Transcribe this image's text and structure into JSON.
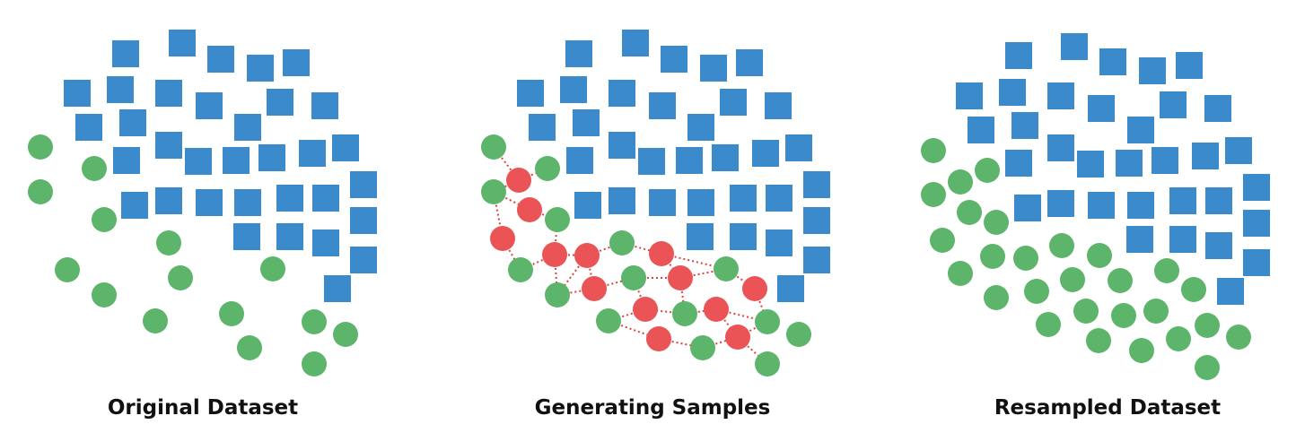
{
  "colors": {
    "majority_square": "#3b8bcc",
    "minority_circle": "#5cb56a",
    "synthetic_circle": "#ea5456",
    "link_line": "#e0413f",
    "caption_text": "#111111"
  },
  "panels": [
    {
      "id": "original",
      "caption": "Original Dataset",
      "squares": [
        [
          140,
          60
        ],
        [
          203,
          48
        ],
        [
          246,
          66
        ],
        [
          290,
          76
        ],
        [
          330,
          70
        ],
        [
          86,
          104
        ],
        [
          134,
          100
        ],
        [
          188,
          104
        ],
        [
          233,
          118
        ],
        [
          312,
          114
        ],
        [
          362,
          118
        ],
        [
          99,
          142
        ],
        [
          148,
          137
        ],
        [
          276,
          142
        ],
        [
          141,
          179
        ],
        [
          188,
          162
        ],
        [
          221,
          180
        ],
        [
          263,
          179
        ],
        [
          303,
          176
        ],
        [
          348,
          171
        ],
        [
          385,
          165
        ],
        [
          405,
          206
        ],
        [
          150,
          229
        ],
        [
          188,
          224
        ],
        [
          233,
          226
        ],
        [
          276,
          226
        ],
        [
          323,
          221
        ],
        [
          363,
          221
        ],
        [
          405,
          246
        ],
        [
          275,
          264
        ],
        [
          323,
          264
        ],
        [
          363,
          271
        ],
        [
          405,
          290
        ],
        [
          376,
          322
        ]
      ],
      "circles": [
        [
          45,
          164
        ],
        [
          105,
          188
        ],
        [
          45,
          214
        ],
        [
          116,
          245
        ],
        [
          188,
          271
        ],
        [
          75,
          301
        ],
        [
          201,
          310
        ],
        [
          304,
          300
        ],
        [
          116,
          329
        ],
        [
          173,
          358
        ],
        [
          258,
          350
        ],
        [
          350,
          359
        ],
        [
          385,
          373
        ],
        [
          278,
          388
        ],
        [
          350,
          406
        ]
      ],
      "synthetic": [],
      "links": []
    },
    {
      "id": "generating",
      "caption": "Generating Samples",
      "squares": [
        [
          645,
          60
        ],
        [
          708,
          48
        ],
        [
          751,
          66
        ],
        [
          795,
          76
        ],
        [
          835,
          70
        ],
        [
          591,
          104
        ],
        [
          639,
          100
        ],
        [
          693,
          104
        ],
        [
          738,
          118
        ],
        [
          817,
          114
        ],
        [
          867,
          118
        ],
        [
          604,
          142
        ],
        [
          653,
          137
        ],
        [
          781,
          142
        ],
        [
          646,
          179
        ],
        [
          693,
          162
        ],
        [
          726,
          180
        ],
        [
          768,
          179
        ],
        [
          808,
          176
        ],
        [
          853,
          171
        ],
        [
          890,
          165
        ],
        [
          910,
          206
        ],
        [
          655,
          229
        ],
        [
          693,
          224
        ],
        [
          738,
          226
        ],
        [
          781,
          226
        ],
        [
          828,
          221
        ],
        [
          868,
          221
        ],
        [
          910,
          246
        ],
        [
          780,
          264
        ],
        [
          828,
          264
        ],
        [
          868,
          271
        ],
        [
          910,
          290
        ],
        [
          881,
          322
        ]
      ],
      "circles": [
        [
          550,
          164
        ],
        [
          610,
          188
        ],
        [
          550,
          214
        ],
        [
          621,
          245
        ],
        [
          693,
          271
        ],
        [
          580,
          301
        ],
        [
          706,
          310
        ],
        [
          809,
          300
        ],
        [
          621,
          329
        ],
        [
          678,
          358
        ],
        [
          763,
          350
        ],
        [
          855,
          359
        ],
        [
          890,
          373
        ],
        [
          783,
          388
        ],
        [
          855,
          406
        ]
      ],
      "synthetic": [
        [
          578,
          201
        ],
        [
          590,
          234
        ],
        [
          560,
          266
        ],
        [
          618,
          284
        ],
        [
          654,
          285
        ],
        [
          737,
          283
        ],
        [
          758,
          310
        ],
        [
          662,
          322
        ],
        [
          841,
          322
        ],
        [
          719,
          345
        ],
        [
          798,
          345
        ],
        [
          734,
          378
        ],
        [
          822,
          376
        ]
      ],
      "links": [
        [
          [
            550,
            164
          ],
          [
            578,
            201
          ]
        ],
        [
          [
            578,
            201
          ],
          [
            610,
            188
          ]
        ],
        [
          [
            578,
            201
          ],
          [
            550,
            214
          ]
        ],
        [
          [
            550,
            214
          ],
          [
            590,
            234
          ]
        ],
        [
          [
            590,
            234
          ],
          [
            621,
            245
          ]
        ],
        [
          [
            550,
            214
          ],
          [
            560,
            266
          ]
        ],
        [
          [
            560,
            266
          ],
          [
            580,
            301
          ]
        ],
        [
          [
            580,
            301
          ],
          [
            618,
            284
          ]
        ],
        [
          [
            618,
            284
          ],
          [
            621,
            245
          ]
        ],
        [
          [
            618,
            284
          ],
          [
            654,
            285
          ]
        ],
        [
          [
            654,
            285
          ],
          [
            693,
            271
          ]
        ],
        [
          [
            618,
            284
          ],
          [
            621,
            329
          ]
        ],
        [
          [
            654,
            285
          ],
          [
            621,
            329
          ]
        ],
        [
          [
            654,
            285
          ],
          [
            662,
            322
          ]
        ],
        [
          [
            662,
            322
          ],
          [
            621,
            329
          ]
        ],
        [
          [
            662,
            322
          ],
          [
            706,
            310
          ]
        ],
        [
          [
            693,
            271
          ],
          [
            737,
            283
          ]
        ],
        [
          [
            737,
            283
          ],
          [
            809,
            300
          ]
        ],
        [
          [
            737,
            283
          ],
          [
            758,
            310
          ]
        ],
        [
          [
            706,
            310
          ],
          [
            758,
            310
          ]
        ],
        [
          [
            758,
            310
          ],
          [
            809,
            300
          ]
        ],
        [
          [
            809,
            300
          ],
          [
            841,
            322
          ]
        ],
        [
          [
            841,
            322
          ],
          [
            855,
            359
          ]
        ],
        [
          [
            758,
            310
          ],
          [
            763,
            350
          ]
        ],
        [
          [
            763,
            350
          ],
          [
            719,
            345
          ]
        ],
        [
          [
            719,
            345
          ],
          [
            678,
            358
          ]
        ],
        [
          [
            719,
            345
          ],
          [
            706,
            310
          ]
        ],
        [
          [
            763,
            350
          ],
          [
            798,
            345
          ]
        ],
        [
          [
            798,
            345
          ],
          [
            855,
            359
          ]
        ],
        [
          [
            678,
            358
          ],
          [
            734,
            378
          ]
        ],
        [
          [
            734,
            378
          ],
          [
            783,
            388
          ]
        ],
        [
          [
            783,
            388
          ],
          [
            822,
            376
          ]
        ],
        [
          [
            822,
            376
          ],
          [
            855,
            406
          ]
        ],
        [
          [
            822,
            376
          ],
          [
            855,
            359
          ]
        ],
        [
          [
            798,
            345
          ],
          [
            822,
            376
          ]
        ]
      ]
    },
    {
      "id": "resampled",
      "caption": "Resampled Dataset",
      "squares": [
        [
          1135,
          62
        ],
        [
          1197,
          52
        ],
        [
          1240,
          69
        ],
        [
          1284,
          79
        ],
        [
          1325,
          73
        ],
        [
          1080,
          107
        ],
        [
          1128,
          103
        ],
        [
          1182,
          107
        ],
        [
          1227,
          121
        ],
        [
          1307,
          117
        ],
        [
          1357,
          121
        ],
        [
          1093,
          145
        ],
        [
          1142,
          140
        ],
        [
          1271,
          145
        ],
        [
          1135,
          182
        ],
        [
          1182,
          165
        ],
        [
          1215,
          183
        ],
        [
          1258,
          182
        ],
        [
          1298,
          179
        ],
        [
          1343,
          174
        ],
        [
          1380,
          168
        ],
        [
          1400,
          209
        ],
        [
          1145,
          232
        ],
        [
          1182,
          227
        ],
        [
          1227,
          229
        ],
        [
          1271,
          229
        ],
        [
          1318,
          224
        ],
        [
          1358,
          224
        ],
        [
          1400,
          249
        ],
        [
          1270,
          267
        ],
        [
          1318,
          267
        ],
        [
          1358,
          274
        ],
        [
          1400,
          293
        ],
        [
          1371,
          325
        ]
      ],
      "circles": [
        [
          1040,
          168
        ],
        [
          1070,
          203
        ],
        [
          1100,
          190
        ],
        [
          1040,
          217
        ],
        [
          1080,
          237
        ],
        [
          1110,
          248
        ],
        [
          1050,
          268
        ],
        [
          1106,
          286
        ],
        [
          1143,
          288
        ],
        [
          1183,
          274
        ],
        [
          1225,
          285
        ],
        [
          1070,
          305
        ],
        [
          1155,
          325
        ],
        [
          1195,
          312
        ],
        [
          1248,
          313
        ],
        [
          1300,
          302
        ],
        [
          1110,
          332
        ],
        [
          1210,
          347
        ],
        [
          1252,
          352
        ],
        [
          1288,
          347
        ],
        [
          1330,
          323
        ],
        [
          1168,
          362
        ],
        [
          1224,
          380
        ],
        [
          1272,
          391
        ],
        [
          1313,
          378
        ],
        [
          1345,
          363
        ],
        [
          1380,
          376
        ],
        [
          1345,
          410
        ]
      ],
      "synthetic": [],
      "links": []
    }
  ]
}
